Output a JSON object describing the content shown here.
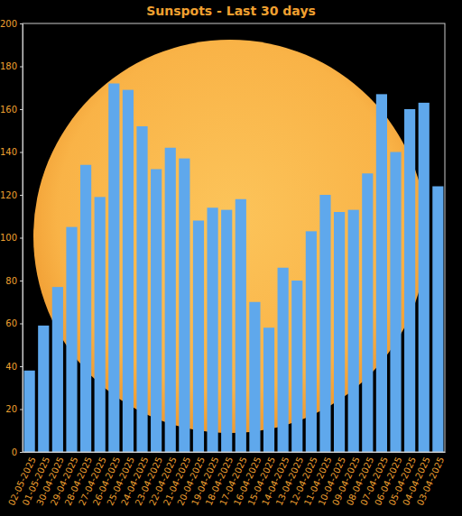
{
  "chart_data": {
    "type": "bar",
    "title": "Sunspots - Last 30 days",
    "categories": [
      "02-05-2025",
      "01-05-2025",
      "30-04-2025",
      "29-04-2025",
      "28-04-2025",
      "27-04-2025",
      "26-04-2025",
      "25-04-2025",
      "24-04-2025",
      "23-04-2025",
      "22-04-2025",
      "21-04-2025",
      "20-04-2025",
      "19-04-2025",
      "18-04-2025",
      "17-04-2025",
      "16-04-2025",
      "15-04-2025",
      "14-04-2025",
      "13-04-2025",
      "12-04-2025",
      "11-04-2025",
      "10-04-2025",
      "09-04-2025",
      "08-04-2025",
      "07-04-2025",
      "06-04-2025",
      "05-04-2025",
      "04-04-2025",
      "03-04-2025"
    ],
    "values": [
      38,
      59,
      77,
      105,
      134,
      119,
      172,
      169,
      152,
      132,
      142,
      137,
      108,
      114,
      113,
      118,
      70,
      58,
      86,
      80,
      103,
      120,
      112,
      113,
      130,
      167,
      140,
      160,
      163,
      124
    ],
    "color": "#5fa8ec",
    "ylim": [
      0,
      200
    ],
    "yticks": [
      0,
      20,
      40,
      60,
      80,
      100,
      120,
      140,
      160,
      180,
      200
    ],
    "grid": false
  }
}
